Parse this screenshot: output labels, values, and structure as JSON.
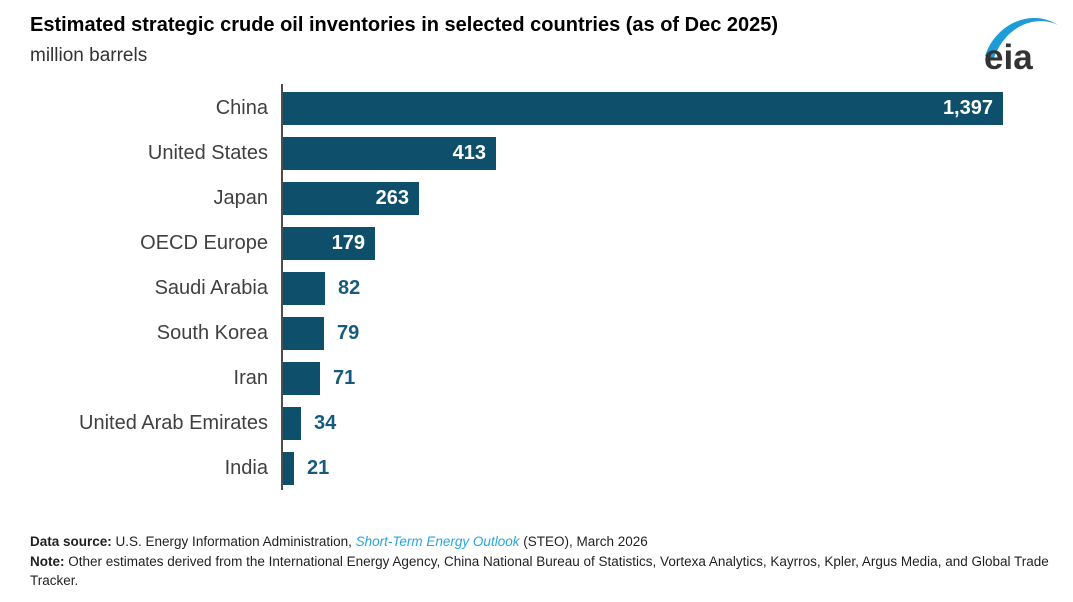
{
  "header": {
    "title": "Estimated strategic crude oil inventories in selected countries (as of Dec 2025)",
    "subtitle": "million barrels",
    "logo_text": "eia"
  },
  "chart_data": {
    "type": "bar",
    "orientation": "horizontal",
    "title": "Estimated strategic crude oil inventories in selected countries (as of Dec 2025)",
    "unit_label": "million barrels",
    "categories": [
      "China",
      "United States",
      "Japan",
      "OECD Europe",
      "Saudi Arabia",
      "South Korea",
      "Iran",
      "United Arab Emirates",
      "India"
    ],
    "values": [
      1397,
      413,
      263,
      179,
      82,
      79,
      71,
      34,
      21
    ],
    "value_labels": [
      "1,397",
      "413",
      "263",
      "179",
      "82",
      "79",
      "71",
      "34",
      "21"
    ],
    "xlim": [
      0,
      1400
    ],
    "grid": false,
    "legend": false,
    "value_label_position_rule": "inside bar if bar is long enough, otherwise outside right"
  },
  "colors": {
    "bar": "#0e506c",
    "value_inside": "#ffffff",
    "value_outside": "#175a7e",
    "axis": "#4d4d4d",
    "category_label": "#404040",
    "link": "#29a5dc",
    "swoosh": "#1e9cd8",
    "logo_text": "#333333"
  },
  "footer": {
    "data_source_label": "Data source: ",
    "data_source_pre": "U.S. Energy Information Administration, ",
    "data_source_link": "Short-Term Energy Outlook",
    "data_source_post": " (STEO), March 2026",
    "note_label": "Note: ",
    "note_text": "Other estimates derived from the International Energy Agency, China National Bureau of Statistics, Vortexa Analytics, Kayrros, Kpler, Argus Media, and Global Trade Tracker."
  }
}
